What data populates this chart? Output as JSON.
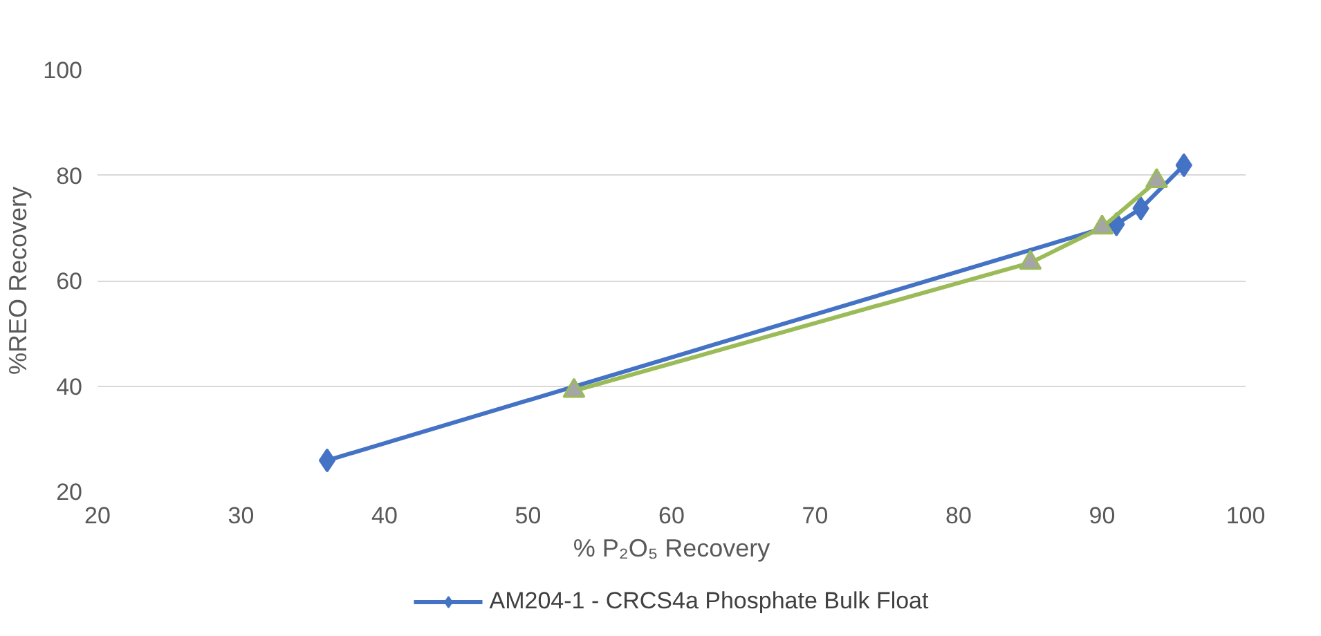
{
  "chart_data": {
    "type": "line",
    "xlabel": "% P₂O₅ Recovery",
    "ylabel": "%REO Recovery",
    "xlim": [
      20,
      100
    ],
    "xticks": [
      20,
      30,
      40,
      50,
      60,
      70,
      80,
      90,
      100
    ],
    "ylim": [
      20,
      100
    ],
    "yticks": [
      20,
      40,
      60,
      80,
      100
    ],
    "grid": "y",
    "legend": "bottom",
    "line_style": "solid",
    "series": [
      {
        "name": "AM204-1 - CRCS4a Phosphate Bulk Float",
        "color": "#4472c4",
        "marker": "diamond",
        "x": [
          36.0,
          91.0,
          92.7,
          95.7
        ],
        "values": [
          25.9,
          70.7,
          73.7,
          81.9
        ]
      },
      {
        "color": "#9bbb59",
        "marker": "triangle",
        "x": [
          53.2,
          85.0,
          90.0,
          93.8
        ],
        "values": [
          39.1,
          63.4,
          70.1,
          78.9
        ]
      }
    ]
  }
}
